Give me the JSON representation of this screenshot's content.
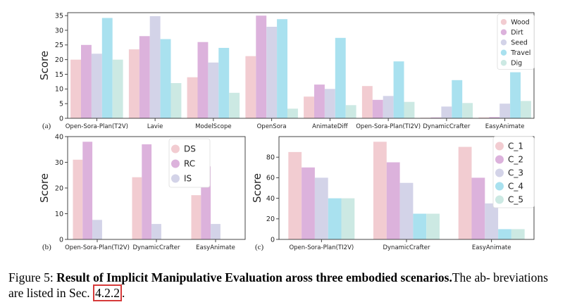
{
  "chart_data": [
    {
      "type": "bar",
      "panel_label": "(a)",
      "ylabel": "Score",
      "ylim": [
        0,
        36
      ],
      "yticks": [
        0,
        5,
        10,
        15,
        20,
        25,
        30,
        35
      ],
      "legend_position": "top-right",
      "categories": [
        "Open-Sora-Plan(T2V)",
        "Lavie",
        "ModelScope",
        "OpenSora",
        "AnimateDiff",
        "Open-Sora-Plan(TI2V)",
        "DynamicCrafter",
        "EasyAnimate"
      ],
      "series": [
        {
          "name": "Wood",
          "color": "#f2ccd1",
          "values": [
            20,
            23.5,
            14,
            21.2,
            7.4,
            11,
            0.2,
            0.3
          ]
        },
        {
          "name": "Dirt",
          "color": "#dcb2dc",
          "values": [
            25,
            28,
            26,
            35,
            11.5,
            6.3,
            0.3,
            0.4
          ]
        },
        {
          "name": "Seed",
          "color": "#d3d3e8",
          "values": [
            22,
            34.8,
            19,
            31.2,
            10,
            7.6,
            4,
            5
          ]
        },
        {
          "name": "Travel",
          "color": "#a9e1ef",
          "values": [
            34.2,
            27,
            24,
            33.8,
            27.4,
            19.4,
            13,
            15.7
          ]
        },
        {
          "name": "Dig",
          "color": "#cce9e3",
          "values": [
            20,
            12,
            8.7,
            3.3,
            4.5,
            5.6,
            5.2,
            5.9
          ]
        }
      ]
    },
    {
      "type": "bar",
      "panel_label": "(b)",
      "ylabel": "Score",
      "ylim": [
        0,
        40
      ],
      "yticks": [
        0,
        10,
        20,
        30,
        40
      ],
      "legend_position": "top-right",
      "categories": [
        "Open-Sora-Plan(TI2V)",
        "DynamicCrafter",
        "EasyAnimate"
      ],
      "series": [
        {
          "name": "DS",
          "color": "#f2ccd1",
          "values": [
            31,
            24.2,
            17.2
          ]
        },
        {
          "name": "RC",
          "color": "#dcb2dc",
          "values": [
            38,
            37,
            28.4
          ]
        },
        {
          "name": "IS",
          "color": "#d3d3e8",
          "values": [
            7.6,
            6,
            6
          ]
        }
      ]
    },
    {
      "type": "bar",
      "panel_label": "(c)",
      "ylabel": "Score",
      "ylim": [
        0,
        100
      ],
      "yticks": [
        0,
        20,
        40,
        60,
        80
      ],
      "legend_position": "top-right",
      "categories": [
        "Open-Sora-Plan(TI2V)",
        "DynamicCrafter",
        "EasyAnimate"
      ],
      "series": [
        {
          "name": "C_1",
          "color": "#f2ccd1",
          "values": [
            85,
            95,
            90
          ]
        },
        {
          "name": "C_2",
          "color": "#dcb2dc",
          "values": [
            70,
            75,
            60
          ]
        },
        {
          "name": "C_3",
          "color": "#d3d3e8",
          "values": [
            60,
            55,
            35
          ]
        },
        {
          "name": "C_4",
          "color": "#a9e1ef",
          "values": [
            40,
            25,
            10
          ]
        },
        {
          "name": "C_5",
          "color": "#cce9e3",
          "values": [
            40,
            25,
            10
          ]
        }
      ]
    }
  ],
  "caption": {
    "prefix": "Figure 5: ",
    "bold": "Result of Implicit Manipulative Evaluation aross three embodied scenarios.",
    "rest": "The ab- breviations are listed in Sec. ",
    "ref": "4.2.2",
    "end": "."
  }
}
